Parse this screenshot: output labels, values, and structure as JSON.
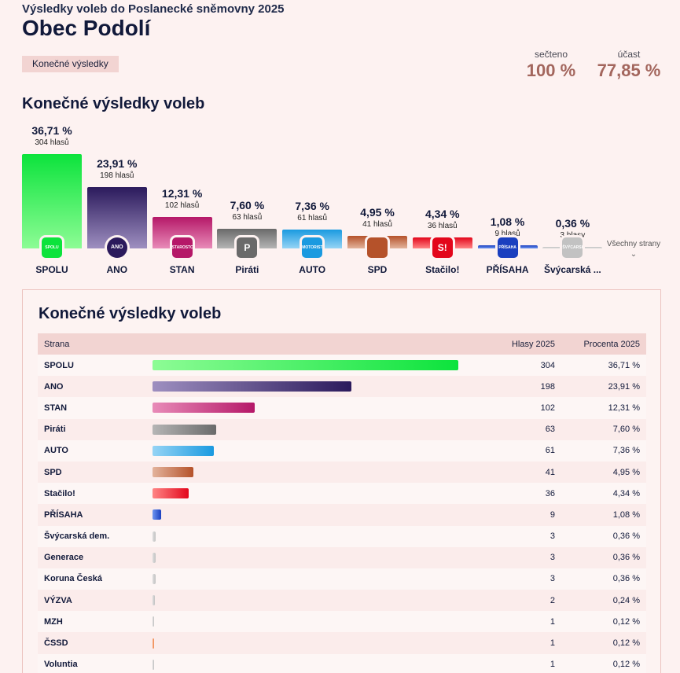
{
  "header": {
    "subtitle": "Výsledky voleb do Poslanecké sněmovny 2025",
    "title": "Obec Podolí",
    "status_tag": "Konečné výsledky"
  },
  "stats": {
    "counted_label": "sečteno",
    "counted_value": "100 %",
    "turnout_label": "účast",
    "turnout_value": "77,85 %"
  },
  "chart_section": {
    "title": "Konečné výsledky voleb",
    "all_parties_label": "Všechny strany",
    "chevron_glyph": "⌄"
  },
  "chart_data": {
    "type": "bar",
    "title": "Konečné výsledky voleb",
    "categories": [
      "SPOLU",
      "ANO",
      "STAN",
      "Piráti",
      "AUTO",
      "SPD",
      "Stačilo!",
      "PŘÍSAHA",
      "Švýcarská ..."
    ],
    "values": [
      36.71,
      23.91,
      12.31,
      7.6,
      7.36,
      4.95,
      4.34,
      1.08,
      0.36
    ],
    "value_labels": [
      "36,71 %",
      "23,91 %",
      "12,31 %",
      "7,60 %",
      "7,36 %",
      "4,95 %",
      "4,34 %",
      "1,08 %",
      "0,36 %"
    ],
    "votes": [
      304,
      198,
      102,
      63,
      61,
      41,
      36,
      9,
      3
    ],
    "vote_labels": [
      "304 hlasů",
      "198 hlasů",
      "102 hlasů",
      "63 hlasů",
      "61 hlasů",
      "41 hlasů",
      "36 hlasů",
      "9 hlasů",
      "3 hlasy"
    ],
    "logos": [
      "SPOLU",
      "ANO",
      "STAROSTOVÉ",
      "P",
      "MOTORISTÉ",
      "",
      "S!",
      "PŘÍSAHA",
      "ŠVÝCARSKÁ"
    ],
    "colors": [
      [
        "#8dfc95",
        "#0ce33c"
      ],
      [
        "#9e8fc0",
        "#2b1a5c"
      ],
      [
        "#e88bb8",
        "#b51868"
      ],
      [
        "#b5b5b5",
        "#6a6a6a"
      ],
      [
        "#95d4f5",
        "#1a9ae0"
      ],
      [
        "#e3b39c",
        "#b5522a"
      ],
      [
        "#ff8585",
        "#e3061b"
      ],
      [
        "#6e96f0",
        "#1a3fbf"
      ],
      [
        "#dddddd",
        "#c2c2c2"
      ]
    ],
    "ylim": [
      0,
      40
    ]
  },
  "table": {
    "title": "Konečné výsledky voleb",
    "headers": {
      "party": "Strana",
      "votes": "Hlasy 2025",
      "percent": "Procenta 2025"
    },
    "max_value": 36.71,
    "rows": [
      {
        "party": "SPOLU",
        "votes": "304",
        "percent": "36,71 %",
        "value": 36.71,
        "c1": "#8dfc95",
        "c2": "#0ce33c"
      },
      {
        "party": "ANO",
        "votes": "198",
        "percent": "23,91 %",
        "value": 23.91,
        "c1": "#9e8fc0",
        "c2": "#2b1a5c"
      },
      {
        "party": "STAN",
        "votes": "102",
        "percent": "12,31 %",
        "value": 12.31,
        "c1": "#e88bb8",
        "c2": "#b51868"
      },
      {
        "party": "Piráti",
        "votes": "63",
        "percent": "7,60 %",
        "value": 7.6,
        "c1": "#b5b5b5",
        "c2": "#6a6a6a"
      },
      {
        "party": "AUTO",
        "votes": "61",
        "percent": "7,36 %",
        "value": 7.36,
        "c1": "#95d4f5",
        "c2": "#1a9ae0"
      },
      {
        "party": "SPD",
        "votes": "41",
        "percent": "4,95 %",
        "value": 4.95,
        "c1": "#e3b39c",
        "c2": "#b5522a"
      },
      {
        "party": "Stačilo!",
        "votes": "36",
        "percent": "4,34 %",
        "value": 4.34,
        "c1": "#ff8585",
        "c2": "#e3061b"
      },
      {
        "party": "PŘÍSAHA",
        "votes": "9",
        "percent": "1,08 %",
        "value": 1.08,
        "c1": "#6e96f0",
        "c2": "#1a3fbf"
      },
      {
        "party": "Švýcarská dem.",
        "votes": "3",
        "percent": "0,36 %",
        "value": 0.36,
        "c1": "#dddddd",
        "c2": "#c2c2c2"
      },
      {
        "party": "Generace",
        "votes": "3",
        "percent": "0,36 %",
        "value": 0.36,
        "c1": "#dddddd",
        "c2": "#c2c2c2"
      },
      {
        "party": "Koruna Česká",
        "votes": "3",
        "percent": "0,36 %",
        "value": 0.36,
        "c1": "#dddddd",
        "c2": "#c2c2c2"
      },
      {
        "party": "VÝZVA",
        "votes": "2",
        "percent": "0,24 %",
        "value": 0.24,
        "c1": "#dddddd",
        "c2": "#c2c2c2"
      },
      {
        "party": "MZH",
        "votes": "1",
        "percent": "0,12 %",
        "value": 0.12,
        "c1": "#dddddd",
        "c2": "#c2c2c2"
      },
      {
        "party": "ČSSD",
        "votes": "1",
        "percent": "0,12 %",
        "value": 0.12,
        "c1": "#f5b08a",
        "c2": "#f08a50"
      },
      {
        "party": "Voluntia",
        "votes": "1",
        "percent": "0,12 %",
        "value": 0.12,
        "c1": "#dddddd",
        "c2": "#c2c2c2"
      }
    ]
  }
}
